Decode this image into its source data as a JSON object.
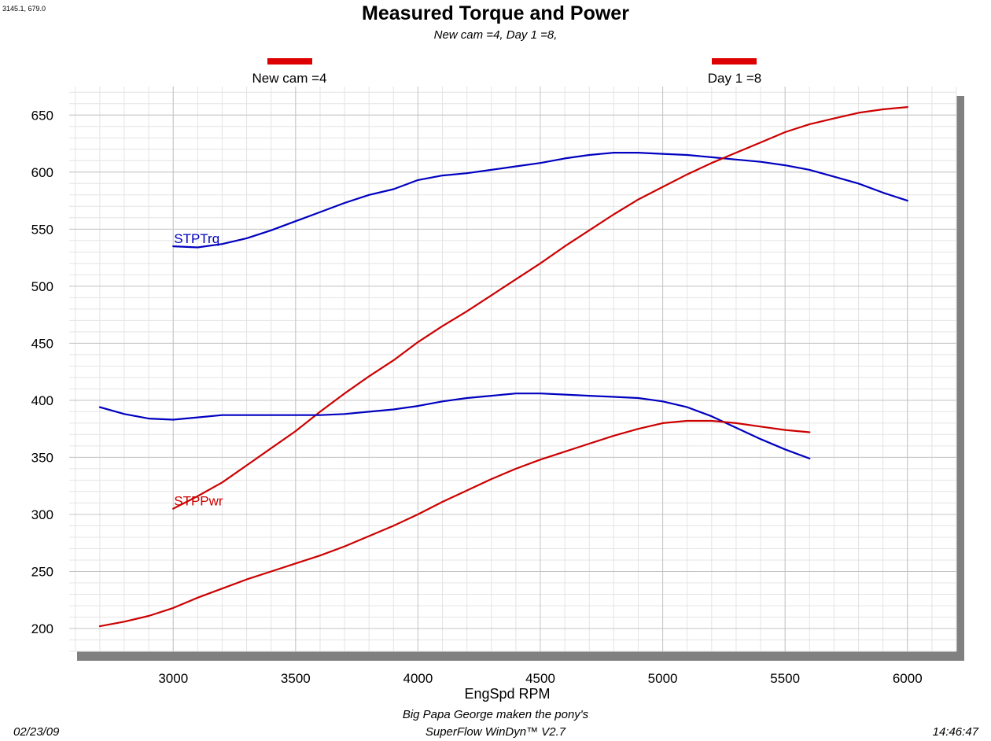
{
  "header": {
    "coord_readout": "3145.1, 679.0",
    "title": "Measured Torque and Power",
    "subtitle": "New cam =4, Day 1 =8,"
  },
  "legend": [
    {
      "label": "New cam =4",
      "color": "#dd0000"
    },
    {
      "label": "Day 1 =8",
      "color": "#dd0000"
    }
  ],
  "footer": {
    "date": "02/23/09",
    "note": "Big Papa George maken the pony's",
    "software": "SuperFlow WinDyn™ V2.7",
    "time": "14:46:47"
  },
  "chart_data": {
    "type": "line",
    "title": "Measured Torque and Power",
    "subtitle": "New cam =4, Day 1 =8,",
    "xlabel": "EngSpd  RPM",
    "ylabel": "",
    "xlim": [
      2575,
      6200
    ],
    "ylim": [
      180,
      675
    ],
    "xticks": [
      3000,
      3500,
      4000,
      4500,
      5000,
      5500,
      6000
    ],
    "yticks": [
      200,
      250,
      300,
      350,
      400,
      450,
      500,
      550,
      600,
      650
    ],
    "grid": true,
    "series_labels": [
      {
        "text": "STPTrq",
        "color": "#0000c0"
      },
      {
        "text": "STPPwr",
        "color": "#cc0000"
      }
    ],
    "series": [
      {
        "group": "Day 1 =8",
        "quantity": "STPTrq",
        "color": "#0000c0",
        "x": [
          3000,
          3100,
          3200,
          3300,
          3400,
          3500,
          3600,
          3700,
          3800,
          3900,
          4000,
          4100,
          4200,
          4300,
          4400,
          4500,
          4600,
          4700,
          4800,
          4900,
          5000,
          5100,
          5200,
          5300,
          5400,
          5500,
          5600,
          5700,
          5800,
          5900,
          6000
        ],
        "y": [
          535,
          534,
          537,
          542,
          549,
          557,
          565,
          573,
          580,
          585,
          593,
          597,
          599,
          602,
          605,
          608,
          612,
          615,
          617,
          617,
          616,
          615,
          613,
          611,
          609,
          606,
          602,
          596,
          590,
          582,
          575
        ]
      },
      {
        "group": "Day 1 =8",
        "quantity": "STPPwr",
        "color": "#cc0000",
        "x": [
          3000,
          3100,
          3200,
          3300,
          3400,
          3500,
          3600,
          3700,
          3800,
          3900,
          4000,
          4100,
          4200,
          4300,
          4400,
          4500,
          4600,
          4700,
          4800,
          4900,
          5000,
          5100,
          5200,
          5300,
          5400,
          5500,
          5600,
          5700,
          5800,
          5900,
          6000
        ],
        "y": [
          305,
          316,
          328,
          343,
          358,
          373,
          390,
          406,
          421,
          435,
          451,
          465,
          478,
          492,
          506,
          520,
          535,
          549,
          563,
          576,
          587,
          598,
          608,
          617,
          626,
          635,
          642,
          647,
          652,
          655,
          657
        ]
      },
      {
        "group": "New cam =4",
        "quantity": "STPTrq",
        "color": "#0000c0",
        "x": [
          2700,
          2800,
          2900,
          3000,
          3100,
          3200,
          3300,
          3400,
          3500,
          3600,
          3700,
          3800,
          3900,
          4000,
          4100,
          4200,
          4300,
          4400,
          4500,
          4600,
          4700,
          4800,
          4900,
          5000,
          5100,
          5200,
          5300,
          5400,
          5500,
          5600
        ],
        "y": [
          394,
          388,
          384,
          383,
          385,
          387,
          387,
          387,
          387,
          387,
          388,
          390,
          392,
          395,
          399,
          402,
          404,
          406,
          406,
          405,
          404,
          403,
          402,
          399,
          394,
          386,
          376,
          366,
          357,
          349
        ]
      },
      {
        "group": "New cam =4",
        "quantity": "STPPwr",
        "color": "#cc0000",
        "x": [
          2700,
          2800,
          2900,
          3000,
          3100,
          3200,
          3300,
          3400,
          3500,
          3600,
          3700,
          3800,
          3900,
          4000,
          4100,
          4200,
          4300,
          4400,
          4500,
          4600,
          4700,
          4800,
          4900,
          5000,
          5100,
          5200,
          5300,
          5400,
          5500,
          5600
        ],
        "y": [
          202,
          206,
          211,
          218,
          227,
          235,
          243,
          250,
          257,
          264,
          272,
          281,
          290,
          300,
          311,
          321,
          331,
          340,
          348,
          355,
          362,
          369,
          375,
          380,
          382,
          382,
          380,
          377,
          374,
          372
        ]
      }
    ]
  }
}
